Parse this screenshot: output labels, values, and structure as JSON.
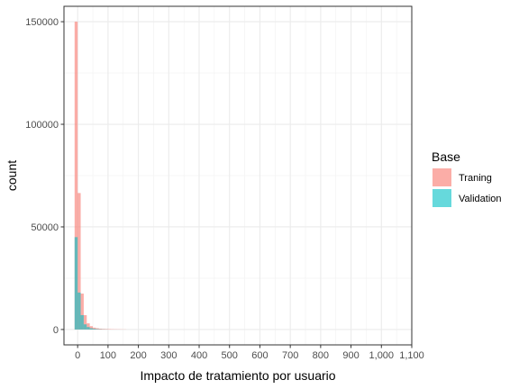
{
  "chart_data": {
    "type": "histogram",
    "title": "",
    "xlabel": "Impacto de tratamiento por usuario",
    "ylabel": "count",
    "xlim": [
      -45,
      1100
    ],
    "ylim": [
      -7500,
      157500
    ],
    "x_ticks": [
      0,
      100,
      200,
      300,
      400,
      500,
      600,
      700,
      800,
      900,
      1000,
      1100
    ],
    "x_tick_labels": [
      "0",
      "100",
      "200",
      "300",
      "400",
      "500",
      "600",
      "700",
      "800",
      "900",
      "1,000",
      "1,100"
    ],
    "y_ticks": [
      0,
      50000,
      100000,
      150000
    ],
    "y_tick_labels": [
      "0",
      "50000",
      "100000",
      "150000"
    ],
    "bin_width": 10,
    "grid": true,
    "bar_opacity": 0.6,
    "legend": {
      "title": "Base",
      "position": "right",
      "entries": [
        "Traning",
        "Validation"
      ]
    },
    "series": [
      {
        "name": "Traning",
        "color": "#F8766D",
        "bins": [
          {
            "x0": -10,
            "x1": 0,
            "count": 150000
          },
          {
            "x0": 0,
            "x1": 10,
            "count": 66500
          },
          {
            "x0": 10,
            "x1": 20,
            "count": 17500
          },
          {
            "x0": 20,
            "x1": 30,
            "count": 7000
          },
          {
            "x0": 30,
            "x1": 40,
            "count": 3000
          },
          {
            "x0": 40,
            "x1": 50,
            "count": 1600
          },
          {
            "x0": 50,
            "x1": 60,
            "count": 900
          },
          {
            "x0": 60,
            "x1": 70,
            "count": 600
          },
          {
            "x0": 70,
            "x1": 80,
            "count": 400
          },
          {
            "x0": 80,
            "x1": 90,
            "count": 300
          },
          {
            "x0": 90,
            "x1": 100,
            "count": 250
          },
          {
            "x0": 100,
            "x1": 110,
            "count": 200
          },
          {
            "x0": 110,
            "x1": 120,
            "count": 150
          },
          {
            "x0": 120,
            "x1": 130,
            "count": 120
          },
          {
            "x0": 130,
            "x1": 140,
            "count": 100
          },
          {
            "x0": 140,
            "x1": 150,
            "count": 80
          },
          {
            "x0": 150,
            "x1": 160,
            "count": 60
          }
        ]
      },
      {
        "name": "Validation",
        "color": "#00BFC4",
        "bins": [
          {
            "x0": -10,
            "x1": 0,
            "count": 45000
          },
          {
            "x0": 0,
            "x1": 10,
            "count": 18000
          },
          {
            "x0": 10,
            "x1": 20,
            "count": 7000
          },
          {
            "x0": 20,
            "x1": 30,
            "count": 2500
          },
          {
            "x0": 30,
            "x1": 40,
            "count": 1200
          },
          {
            "x0": 40,
            "x1": 50,
            "count": 600
          },
          {
            "x0": 50,
            "x1": 60,
            "count": 350
          },
          {
            "x0": 60,
            "x1": 70,
            "count": 200
          },
          {
            "x0": 70,
            "x1": 80,
            "count": 120
          },
          {
            "x0": 80,
            "x1": 90,
            "count": 80
          },
          {
            "x0": 90,
            "x1": 100,
            "count": 50
          }
        ]
      }
    ]
  }
}
